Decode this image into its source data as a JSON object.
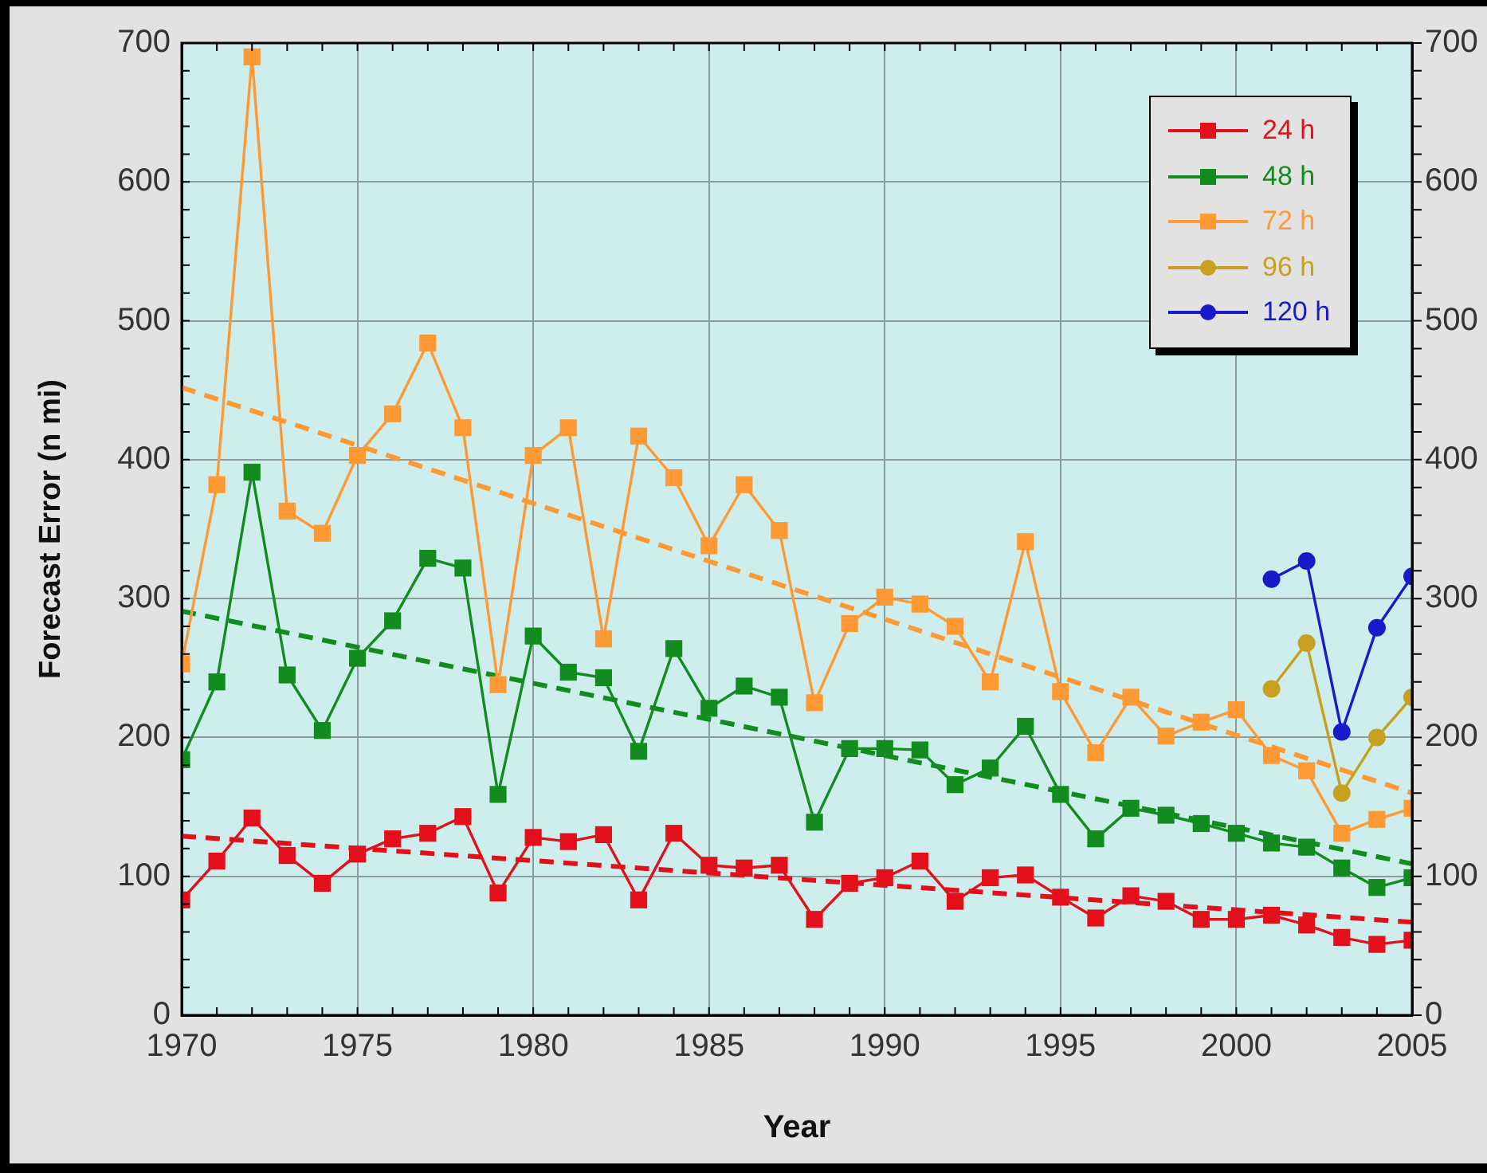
{
  "chart_data": {
    "type": "line",
    "xlabel": "Year",
    "ylabel": "Forecast Error (n mi)",
    "x": [
      1970,
      1971,
      1972,
      1973,
      1974,
      1975,
      1976,
      1977,
      1978,
      1979,
      1980,
      1981,
      1982,
      1983,
      1984,
      1985,
      1986,
      1987,
      1988,
      1989,
      1990,
      1991,
      1992,
      1993,
      1994,
      1995,
      1996,
      1997,
      1998,
      1999,
      2000,
      2001,
      2002,
      2003,
      2004,
      2005
    ],
    "xlim": [
      1970,
      2005
    ],
    "xticks": [
      1970,
      {
        "value": 1971,
        "label": null
      },
      {
        "value": 1972,
        "label": null
      },
      {
        "value": 1973,
        "label": null
      },
      {
        "value": 1974,
        "label": null
      },
      1975,
      {
        "value": 1976,
        "label": null
      },
      {
        "value": 1977,
        "label": null
      },
      {
        "value": 1978,
        "label": null
      },
      {
        "value": 1979,
        "label": null
      },
      1980,
      {
        "value": 1981,
        "label": null
      },
      {
        "value": 1982,
        "label": null
      },
      {
        "value": 1983,
        "label": null
      },
      {
        "value": 1984,
        "label": null
      },
      1985,
      {
        "value": 1986,
        "label": null
      },
      {
        "value": 1987,
        "label": null
      },
      {
        "value": 1988,
        "label": null
      },
      {
        "value": 1989,
        "label": null
      },
      1990,
      {
        "value": 1991,
        "label": null
      },
      {
        "value": 1992,
        "label": null
      },
      {
        "value": 1993,
        "label": null
      },
      {
        "value": 1994,
        "label": null
      },
      1995,
      {
        "value": 1996,
        "label": null
      },
      {
        "value": 1997,
        "label": null
      },
      {
        "value": 1998,
        "label": null
      },
      {
        "value": 1999,
        "label": null
      },
      2000,
      {
        "value": 2001,
        "label": null
      },
      {
        "value": 2002,
        "label": null
      },
      {
        "value": 2003,
        "label": null
      },
      {
        "value": 2004,
        "label": null
      },
      2005
    ],
    "ylim": [
      0,
      700
    ],
    "yticks": [
      0,
      {
        "value": 20,
        "label": null
      },
      {
        "value": 40,
        "label": null
      },
      {
        "value": 60,
        "label": null
      },
      {
        "value": 80,
        "label": null
      },
      100,
      {
        "value": 120,
        "label": null
      },
      {
        "value": 140,
        "label": null
      },
      {
        "value": 160,
        "label": null
      },
      {
        "value": 180,
        "label": null
      },
      200,
      {
        "value": 220,
        "label": null
      },
      {
        "value": 240,
        "label": null
      },
      {
        "value": 260,
        "label": null
      },
      {
        "value": 280,
        "label": null
      },
      300,
      {
        "value": 320,
        "label": null
      },
      {
        "value": 340,
        "label": null
      },
      {
        "value": 360,
        "label": null
      },
      {
        "value": 380,
        "label": null
      },
      400,
      {
        "value": 420,
        "label": null
      },
      {
        "value": 440,
        "label": null
      },
      {
        "value": 460,
        "label": null
      },
      {
        "value": 480,
        "label": null
      },
      500,
      {
        "value": 520,
        "label": null
      },
      {
        "value": 540,
        "label": null
      },
      {
        "value": 560,
        "label": null
      },
      {
        "value": 580,
        "label": null
      },
      600,
      {
        "value": 620,
        "label": null
      },
      {
        "value": 640,
        "label": null
      },
      {
        "value": 660,
        "label": null
      },
      {
        "value": 680,
        "label": null
      },
      700
    ],
    "y2lim": [
      0,
      700
    ],
    "y2ticks": [
      0,
      {
        "value": 20,
        "label": null
      },
      {
        "value": 40,
        "label": null
      },
      {
        "value": 60,
        "label": null
      },
      {
        "value": 80,
        "label": null
      },
      100,
      {
        "value": 120,
        "label": null
      },
      {
        "value": 140,
        "label": null
      },
      {
        "value": 160,
        "label": null
      },
      {
        "value": 180,
        "label": null
      },
      200,
      {
        "value": 220,
        "label": null
      },
      {
        "value": 240,
        "label": null
      },
      {
        "value": 260,
        "label": null
      },
      {
        "value": 280,
        "label": null
      },
      300,
      {
        "value": 320,
        "label": null
      },
      {
        "value": 340,
        "label": null
      },
      {
        "value": 360,
        "label": null
      },
      {
        "value": 380,
        "label": null
      },
      400,
      {
        "value": 420,
        "label": null
      },
      {
        "value": 440,
        "label": null
      },
      {
        "value": 460,
        "label": null
      },
      {
        "value": 480,
        "label": null
      },
      500,
      {
        "value": 520,
        "label": null
      },
      {
        "value": 540,
        "label": null
      },
      {
        "value": 560,
        "label": null
      },
      {
        "value": 580,
        "label": null
      },
      600,
      {
        "value": 620,
        "label": null
      },
      {
        "value": 640,
        "label": null
      },
      {
        "value": 660,
        "label": null
      },
      {
        "value": 680,
        "label": null
      },
      700
    ],
    "grid": true,
    "legend": "top right",
    "series": [
      {
        "name": "24 h",
        "color": "#e3101b",
        "marker": "square",
        "line_style": "solid",
        "values": [
          83,
          111,
          142,
          115,
          95,
          116,
          127,
          131,
          143,
          88,
          128,
          125,
          130,
          83,
          131,
          108,
          106,
          108,
          69,
          95,
          99,
          111,
          82,
          99,
          101,
          85,
          70,
          86,
          82,
          69,
          69,
          72,
          65,
          56,
          51,
          54
        ]
      },
      {
        "name": "48 h",
        "color": "#128c1e",
        "marker": "square",
        "line_style": "solid",
        "values": [
          184,
          240,
          391,
          245,
          205,
          257,
          284,
          329,
          322,
          159,
          273,
          247,
          243,
          190,
          264,
          221,
          237,
          229,
          139,
          192,
          192,
          191,
          166,
          178,
          208,
          159,
          127,
          149,
          144,
          138,
          131,
          124,
          121,
          106,
          92,
          99
        ]
      },
      {
        "name": "72 h",
        "color": "#ff9933",
        "marker": "square",
        "line_style": "solid",
        "values": [
          253,
          382,
          690,
          363,
          347,
          403,
          433,
          484,
          423,
          238,
          403,
          423,
          271,
          417,
          387,
          338,
          382,
          349,
          225,
          282,
          301,
          296,
          280,
          240,
          341,
          233,
          189,
          229,
          201,
          211,
          220,
          187,
          176,
          131,
          141,
          149
        ]
      },
      {
        "name": "96 h",
        "color": "#c8a020",
        "marker": "circle",
        "line_style": "solid",
        "x": [
          2001,
          2002,
          2003,
          2004,
          2005
        ],
        "values": [
          235,
          268,
          160,
          200,
          229
        ]
      },
      {
        "name": "120 h",
        "color": "#1a1acc",
        "marker": "circle",
        "line_style": "solid",
        "x": [
          2001,
          2002,
          2003,
          2004,
          2005
        ],
        "values": [
          314,
          327,
          204,
          279,
          316
        ]
      },
      {
        "type": "line",
        "color": "#e3101b",
        "marker": "none",
        "line_style": "dashed",
        "x": [
          1970,
          2005
        ],
        "values": [
          129,
          67
        ]
      },
      {
        "type": "line",
        "color": "#128c1e",
        "marker": "none",
        "line_style": "dashed",
        "x": [
          1970,
          2005
        ],
        "values": [
          291,
          109
        ]
      },
      {
        "type": "line",
        "color": "#ff9933",
        "marker": "none",
        "line_style": "dashed",
        "x": [
          1970,
          2005
        ],
        "values": [
          452,
          160
        ]
      }
    ]
  }
}
